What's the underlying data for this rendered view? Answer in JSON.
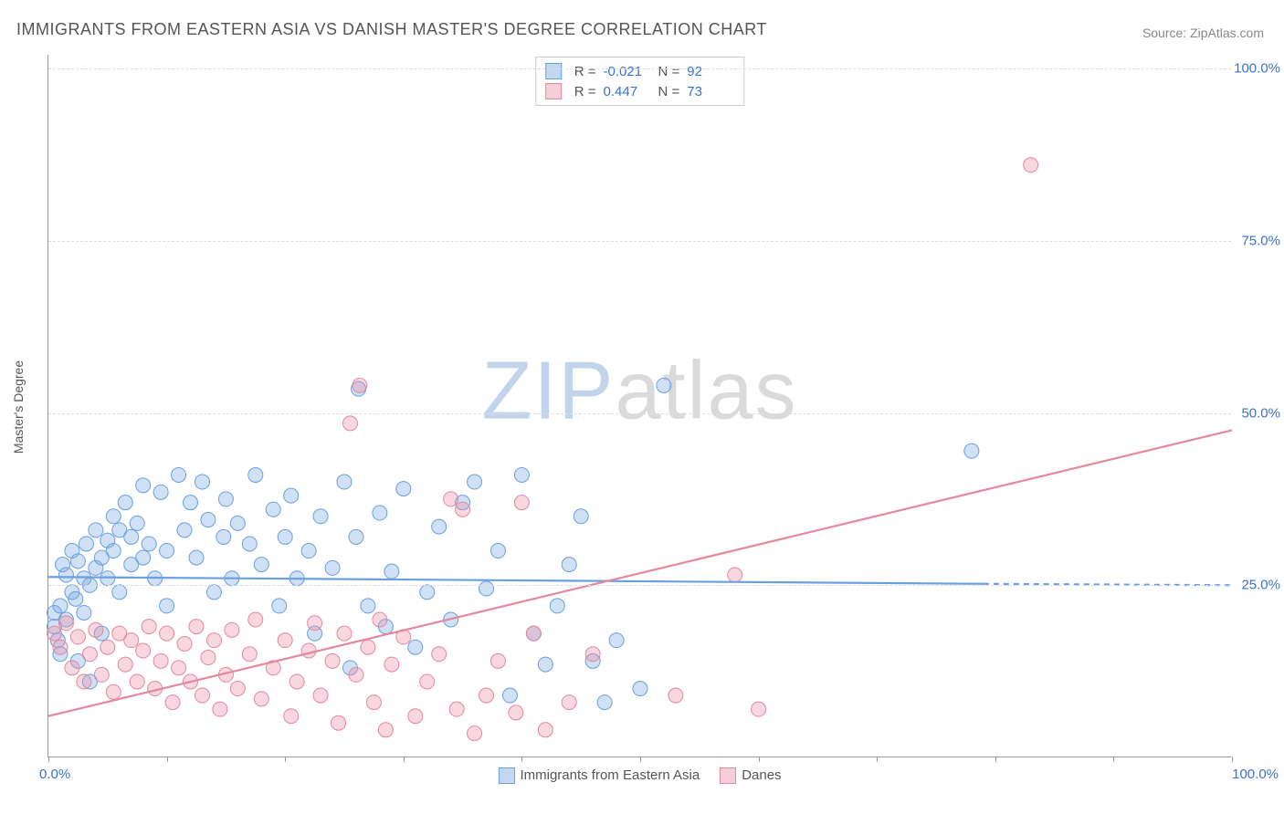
{
  "title": "IMMIGRANTS FROM EASTERN ASIA VS DANISH MASTER'S DEGREE CORRELATION CHART",
  "source": "Source: ZipAtlas.com",
  "watermark": {
    "zip": "ZIP",
    "atlas": "atlas"
  },
  "ylabel": "Master's Degree",
  "chart": {
    "type": "scatter",
    "background_color": "#ffffff",
    "grid_color": "#dddddd",
    "axis_color": "#999999",
    "label_color": "#3a72c8",
    "xlim": [
      0,
      100
    ],
    "ylim": [
      0,
      102
    ],
    "x_ticks": [
      0,
      10,
      20,
      30,
      40,
      50,
      60,
      70,
      80,
      90,
      100
    ],
    "x_tick_labels": {
      "left": "0.0%",
      "right": "100.0%"
    },
    "y_gridlines": [
      25,
      50,
      75,
      100
    ],
    "y_tick_labels": {
      "25": "25.0%",
      "50": "50.0%",
      "75": "75.0%",
      "100": "100.0%"
    },
    "marker_radius": 8,
    "marker_stroke_width": 1,
    "line_width": 2.2,
    "series": [
      {
        "name": "Immigrants from Eastern Asia",
        "color_fill": "rgba(120,165,225,0.35)",
        "color_stroke": "#6a9fe0",
        "swatch_fill": "#c2d7f0",
        "swatch_stroke": "#6a9fe0",
        "R": "-0.021",
        "N": "92",
        "trend": {
          "x1": 0,
          "y1": 26.2,
          "x2": 79,
          "y2": 25.2,
          "dash_to_x": 100,
          "dash_to_y": 25.0
        },
        "points": [
          [
            0.5,
            19
          ],
          [
            0.5,
            21
          ],
          [
            0.8,
            17
          ],
          [
            1,
            22
          ],
          [
            1,
            15
          ],
          [
            1.2,
            28
          ],
          [
            1.5,
            26.5
          ],
          [
            1.5,
            20
          ],
          [
            2,
            24
          ],
          [
            2,
            30
          ],
          [
            2.3,
            23
          ],
          [
            2.5,
            28.5
          ],
          [
            2.5,
            14
          ],
          [
            3,
            26
          ],
          [
            3,
            21
          ],
          [
            3.2,
            31
          ],
          [
            3.5,
            11
          ],
          [
            3.5,
            25
          ],
          [
            4,
            27.5
          ],
          [
            4,
            33
          ],
          [
            4.5,
            29
          ],
          [
            4.5,
            18
          ],
          [
            5,
            31.5
          ],
          [
            5,
            26
          ],
          [
            5.5,
            35
          ],
          [
            5.5,
            30
          ],
          [
            6,
            33
          ],
          [
            6,
            24
          ],
          [
            6.5,
            37
          ],
          [
            7,
            32
          ],
          [
            7,
            28
          ],
          [
            7.5,
            34
          ],
          [
            8,
            39.5
          ],
          [
            8,
            29
          ],
          [
            8.5,
            31
          ],
          [
            9,
            26
          ],
          [
            9.5,
            38.5
          ],
          [
            10,
            30
          ],
          [
            10,
            22
          ],
          [
            11,
            41
          ],
          [
            11.5,
            33
          ],
          [
            12,
            37
          ],
          [
            12.5,
            29
          ],
          [
            13,
            40
          ],
          [
            13.5,
            34.5
          ],
          [
            14,
            24
          ],
          [
            14.8,
            32
          ],
          [
            15,
            37.5
          ],
          [
            15.5,
            26
          ],
          [
            16,
            34
          ],
          [
            17,
            31
          ],
          [
            17.5,
            41
          ],
          [
            18,
            28
          ],
          [
            19,
            36
          ],
          [
            19.5,
            22
          ],
          [
            20,
            32
          ],
          [
            20.5,
            38
          ],
          [
            21,
            26
          ],
          [
            22,
            30
          ],
          [
            22.5,
            18
          ],
          [
            23,
            35
          ],
          [
            24,
            27.5
          ],
          [
            25,
            40
          ],
          [
            25.5,
            13
          ],
          [
            26,
            32
          ],
          [
            26.2,
            53.5
          ],
          [
            27,
            22
          ],
          [
            28,
            35.5
          ],
          [
            28.5,
            19
          ],
          [
            29,
            27
          ],
          [
            30,
            39
          ],
          [
            31,
            16
          ],
          [
            32,
            24
          ],
          [
            33,
            33.5
          ],
          [
            34,
            20
          ],
          [
            35,
            37
          ],
          [
            36,
            40
          ],
          [
            37,
            24.5
          ],
          [
            38,
            30
          ],
          [
            39,
            9
          ],
          [
            40,
            41
          ],
          [
            41,
            18
          ],
          [
            42,
            13.5
          ],
          [
            43,
            22
          ],
          [
            44,
            28
          ],
          [
            45,
            35
          ],
          [
            46,
            14
          ],
          [
            47,
            8
          ],
          [
            48,
            17
          ],
          [
            50,
            10
          ],
          [
            52,
            54
          ],
          [
            78,
            44.5
          ]
        ]
      },
      {
        "name": "Danes",
        "color_fill": "rgba(235,140,165,0.35)",
        "color_stroke": "#e4879f",
        "swatch_fill": "#f5cfd8",
        "swatch_stroke": "#e4879f",
        "R": "0.447",
        "N": "73",
        "trend": {
          "x1": 0,
          "y1": 6,
          "x2": 100,
          "y2": 47.5
        },
        "points": [
          [
            0.5,
            18
          ],
          [
            1,
            16
          ],
          [
            1.5,
            19.5
          ],
          [
            2,
            13
          ],
          [
            2.5,
            17.5
          ],
          [
            3,
            11
          ],
          [
            3.5,
            15
          ],
          [
            4,
            18.5
          ],
          [
            4.5,
            12
          ],
          [
            5,
            16
          ],
          [
            5.5,
            9.5
          ],
          [
            6,
            18
          ],
          [
            6.5,
            13.5
          ],
          [
            7,
            17
          ],
          [
            7.5,
            11
          ],
          [
            8,
            15.5
          ],
          [
            8.5,
            19
          ],
          [
            9,
            10
          ],
          [
            9.5,
            14
          ],
          [
            10,
            18
          ],
          [
            10.5,
            8
          ],
          [
            11,
            13
          ],
          [
            11.5,
            16.5
          ],
          [
            12,
            11
          ],
          [
            12.5,
            19
          ],
          [
            13,
            9
          ],
          [
            13.5,
            14.5
          ],
          [
            14,
            17
          ],
          [
            14.5,
            7
          ],
          [
            15,
            12
          ],
          [
            15.5,
            18.5
          ],
          [
            16,
            10
          ],
          [
            17,
            15
          ],
          [
            17.5,
            20
          ],
          [
            18,
            8.5
          ],
          [
            19,
            13
          ],
          [
            20,
            17
          ],
          [
            20.5,
            6
          ],
          [
            21,
            11
          ],
          [
            22,
            15.5
          ],
          [
            22.5,
            19.5
          ],
          [
            23,
            9
          ],
          [
            24,
            14
          ],
          [
            24.5,
            5
          ],
          [
            25,
            18
          ],
          [
            25.5,
            48.5
          ],
          [
            26,
            12
          ],
          [
            26.3,
            54
          ],
          [
            27,
            16
          ],
          [
            27.5,
            8
          ],
          [
            28,
            20
          ],
          [
            28.5,
            4
          ],
          [
            29,
            13.5
          ],
          [
            30,
            17.5
          ],
          [
            31,
            6
          ],
          [
            32,
            11
          ],
          [
            33,
            15
          ],
          [
            34,
            37.5
          ],
          [
            34.5,
            7
          ],
          [
            35,
            36
          ],
          [
            36,
            3.5
          ],
          [
            37,
            9
          ],
          [
            38,
            14
          ],
          [
            39.5,
            6.5
          ],
          [
            40,
            37
          ],
          [
            41,
            18
          ],
          [
            42,
            4
          ],
          [
            44,
            8
          ],
          [
            46,
            15
          ],
          [
            53,
            9
          ],
          [
            58,
            26.5
          ],
          [
            60,
            7
          ],
          [
            83,
            86
          ]
        ]
      }
    ],
    "bottom_legend": [
      {
        "label": "Immigrants from Eastern Asia",
        "series": 0
      },
      {
        "label": "Danes",
        "series": 1
      }
    ]
  }
}
